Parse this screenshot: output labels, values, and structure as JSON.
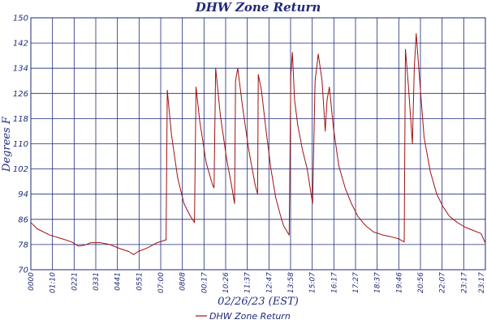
{
  "chart_data": {
    "type": "line",
    "title": "DHW Zone Return",
    "xlabel": "02/26/23 (EST)",
    "ylabel": "Degrees F",
    "ylim": [
      70,
      150
    ],
    "yticks": [
      "70",
      "78",
      "86",
      "94",
      "102",
      "110",
      "118",
      "126",
      "134",
      "142",
      "150"
    ],
    "xlim": [
      "00:00",
      "23:59"
    ],
    "xticks": [
      "0000",
      "01:10",
      "0221",
      "0331",
      "0441",
      "0551",
      "07:00",
      "0808",
      "00:17",
      "10:26",
      "11:37",
      "12:47",
      "13:58",
      "15:07",
      "16:17",
      "17:27",
      "18:37",
      "19:46",
      "20:56",
      "22:07",
      "23:17",
      "23:17"
    ],
    "grid": true,
    "legend": "bottom-center",
    "colors": {
      "series": "#a01010",
      "grid": "#1f2a7a",
      "text": "#1f2a7a"
    },
    "series": [
      {
        "name": "DHW Zone Return",
        "points": [
          [
            "00:00",
            85.0
          ],
          [
            "00:20",
            83.0
          ],
          [
            "01:00",
            81.0
          ],
          [
            "01:40",
            79.8
          ],
          [
            "02:10",
            78.8
          ],
          [
            "02:30",
            77.5
          ],
          [
            "02:50",
            77.8
          ],
          [
            "03:10",
            78.6
          ],
          [
            "03:40",
            78.6
          ],
          [
            "04:10",
            78.0
          ],
          [
            "04:40",
            76.8
          ],
          [
            "05:10",
            75.8
          ],
          [
            "05:25",
            74.8
          ],
          [
            "05:40",
            75.8
          ],
          [
            "06:10",
            77.0
          ],
          [
            "06:40",
            78.6
          ],
          [
            "07:08",
            79.5
          ],
          [
            "07:12",
            127.0
          ],
          [
            "07:25",
            113.0
          ],
          [
            "07:45",
            99.0
          ],
          [
            "08:05",
            91.0
          ],
          [
            "08:25",
            87.0
          ],
          [
            "08:38",
            85.0
          ],
          [
            "08:43",
            128.0
          ],
          [
            "08:55",
            117.0
          ],
          [
            "09:15",
            104.0
          ],
          [
            "09:35",
            97.0
          ],
          [
            "09:40",
            96.0
          ],
          [
            "09:45",
            134.0
          ],
          [
            "10:00",
            119.0
          ],
          [
            "10:20",
            105.0
          ],
          [
            "10:35",
            97.0
          ],
          [
            "10:45",
            91.0
          ],
          [
            "10:48",
            130.0
          ],
          [
            "10:55",
            134.0
          ],
          [
            "11:10",
            122.0
          ],
          [
            "11:30",
            108.0
          ],
          [
            "11:50",
            97.0
          ],
          [
            "11:58",
            94.0
          ],
          [
            "12:00",
            132.0
          ],
          [
            "12:10",
            127.0
          ],
          [
            "12:25",
            114.0
          ],
          [
            "12:40",
            102.0
          ],
          [
            "12:55",
            93.0
          ],
          [
            "13:08",
            88.0
          ],
          [
            "13:20",
            84.0
          ],
          [
            "13:38",
            81.0
          ],
          [
            "13:43",
            132.0
          ],
          [
            "13:48",
            139.0
          ],
          [
            "13:55",
            124.0
          ],
          [
            "14:05",
            116.0
          ],
          [
            "14:20",
            108.0
          ],
          [
            "14:35",
            102.0
          ],
          [
            "14:52",
            91.0
          ],
          [
            "15:00",
            130.0
          ],
          [
            "15:10",
            138.5
          ],
          [
            "15:22",
            130.0
          ],
          [
            "15:32",
            114.0
          ],
          [
            "15:38",
            124.0
          ],
          [
            "15:45",
            128.0
          ],
          [
            "15:58",
            115.0
          ],
          [
            "16:15",
            103.0
          ],
          [
            "16:35",
            96.0
          ],
          [
            "16:55",
            91.0
          ],
          [
            "17:15",
            87.0
          ],
          [
            "17:40",
            84.0
          ],
          [
            "18:05",
            82.0
          ],
          [
            "18:35",
            81.0
          ],
          [
            "19:00",
            80.5
          ],
          [
            "19:25",
            79.8
          ],
          [
            "19:42",
            78.8
          ],
          [
            "19:46",
            140.0
          ],
          [
            "19:55",
            129.0
          ],
          [
            "20:08",
            110.0
          ],
          [
            "20:14",
            134.0
          ],
          [
            "20:20",
            145.0
          ],
          [
            "20:32",
            129.0
          ],
          [
            "20:45",
            112.0
          ],
          [
            "21:05",
            101.0
          ],
          [
            "21:25",
            94.0
          ],
          [
            "21:45",
            90.0
          ],
          [
            "22:05",
            87.0
          ],
          [
            "22:30",
            85.0
          ],
          [
            "22:55",
            83.5
          ],
          [
            "23:20",
            82.5
          ],
          [
            "23:45",
            81.5
          ],
          [
            "23:59",
            78.5
          ]
        ]
      }
    ]
  }
}
